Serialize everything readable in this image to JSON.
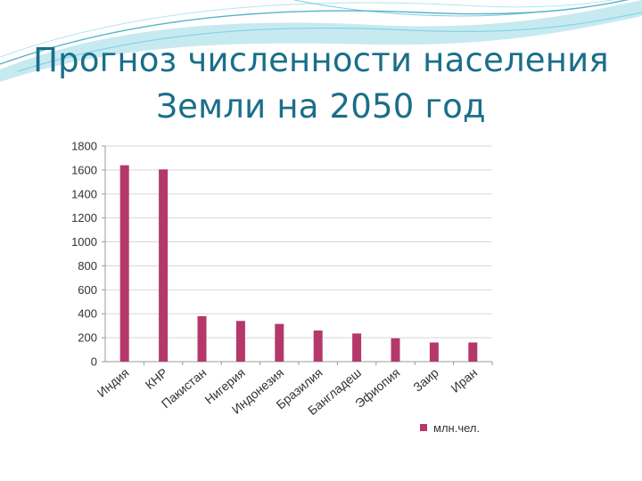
{
  "slide": {
    "title_line1": "Прогноз численности населения",
    "title_line2": "Земли на 2050 год"
  },
  "colors": {
    "accent": "#1a6e8a",
    "bar": "#b5386b",
    "grid": "#d8d8d8",
    "swirl": "#5ec3d6"
  },
  "chart_data": {
    "type": "bar",
    "title": "",
    "xlabel": "",
    "ylabel": "",
    "categories": [
      "Индия",
      "КНР",
      "Пакистан",
      "Нигерия",
      "Индонезия",
      "Бразилия",
      "Бангладеш",
      "Эфиопия",
      "Заир",
      "Иран"
    ],
    "series": [
      {
        "name": "млн.чел.",
        "values": [
          1640,
          1605,
          380,
          340,
          315,
          260,
          235,
          195,
          160,
          160
        ]
      }
    ],
    "ylim": [
      0,
      1800
    ],
    "yticks": [
      0,
      200,
      400,
      600,
      800,
      1000,
      1200,
      1400,
      1600,
      1800
    ],
    "grid": true,
    "legend": "bottom-right"
  }
}
